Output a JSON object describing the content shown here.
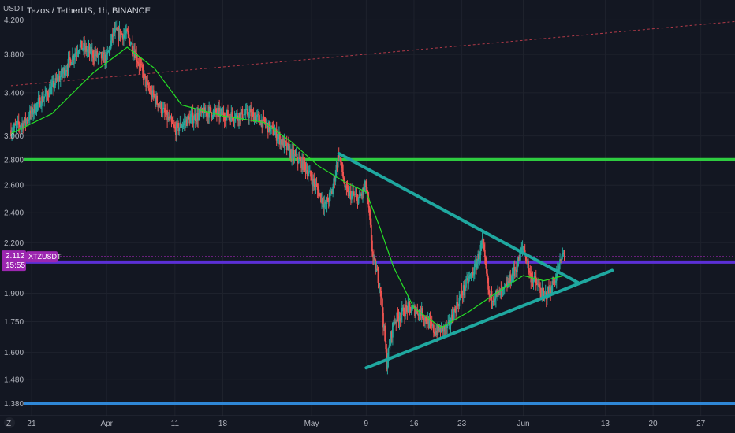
{
  "header": {
    "axis_currency": "USDT",
    "title": "Tezos / TetherUS, 1h, BINANCE"
  },
  "footer": {
    "timezone_icon_label": "Z"
  },
  "colors": {
    "background": "#131722",
    "candle_up": "#26a69a",
    "candle_down": "#ef5350",
    "ma_line": "#26e026",
    "triangle_lines": "#1fa8a0",
    "green_level": "#2ecc40",
    "blue_level": "#2f87d6",
    "purple_level": "#5b2fd6",
    "price_tag": "#9c27b0",
    "trend_dashed": "#b23a48"
  },
  "chart_data": {
    "type": "candlestick",
    "symbol": "XTZUSDT",
    "interval": "1h",
    "exchange": "BINANCE",
    "y_scale": "log",
    "ylim": [
      1.35,
      4.35
    ],
    "xlim": [
      "2022-03-18",
      "2022-07-02"
    ],
    "yticks": [
      1.38,
      1.48,
      1.6,
      1.75,
      1.9,
      2.2,
      2.4,
      2.6,
      2.8,
      3.0,
      3.4,
      3.8,
      4.2
    ],
    "ytick_labels": [
      "1.380",
      "1.480",
      "1.600",
      "1.750",
      "1.900",
      "2.200",
      "2.400",
      "2.600",
      "2.800",
      "3.000",
      "3.400",
      "3.800",
      "4.200"
    ],
    "xticks": [
      {
        "date": "2022-03-21",
        "label": "21"
      },
      {
        "date": "2022-04-01",
        "label": "Apr"
      },
      {
        "date": "2022-04-11",
        "label": "11"
      },
      {
        "date": "2022-04-18",
        "label": "18"
      },
      {
        "date": "2022-05-01",
        "label": "May"
      },
      {
        "date": "2022-05-09",
        "label": "9"
      },
      {
        "date": "2022-05-16",
        "label": "16"
      },
      {
        "date": "2022-05-23",
        "label": "23"
      },
      {
        "date": "2022-06-01",
        "label": "Jun"
      },
      {
        "date": "2022-06-13",
        "label": "13"
      },
      {
        "date": "2022-06-20",
        "label": "20"
      },
      {
        "date": "2022-06-27",
        "label": "27"
      }
    ],
    "price_path": [
      [
        "2022-03-18",
        3.05
      ],
      [
        "2022-03-20",
        3.12
      ],
      [
        "2022-03-22",
        3.3
      ],
      [
        "2022-03-24",
        3.45
      ],
      [
        "2022-03-26",
        3.65
      ],
      [
        "2022-03-28",
        3.9
      ],
      [
        "2022-03-30",
        3.8
      ],
      [
        "2022-04-01",
        3.75
      ],
      [
        "2022-04-02",
        4.05
      ],
      [
        "2022-04-04",
        4.02
      ],
      [
        "2022-04-05",
        3.85
      ],
      [
        "2022-04-07",
        3.45
      ],
      [
        "2022-04-09",
        3.25
      ],
      [
        "2022-04-11",
        3.05
      ],
      [
        "2022-04-13",
        3.15
      ],
      [
        "2022-04-16",
        3.22
      ],
      [
        "2022-04-19",
        3.18
      ],
      [
        "2022-04-22",
        3.2
      ],
      [
        "2022-04-24",
        3.12
      ],
      [
        "2022-04-26",
        3.0
      ],
      [
        "2022-04-28",
        2.85
      ],
      [
        "2022-04-30",
        2.75
      ],
      [
        "2022-05-02",
        2.55
      ],
      [
        "2022-05-03",
        2.45
      ],
      [
        "2022-05-04",
        2.55
      ],
      [
        "2022-05-05",
        2.85
      ],
      [
        "2022-05-06",
        2.55
      ],
      [
        "2022-05-08",
        2.5
      ],
      [
        "2022-05-09",
        2.6
      ],
      [
        "2022-05-10",
        2.1
      ],
      [
        "2022-05-11",
        1.95
      ],
      [
        "2022-05-12",
        1.55
      ],
      [
        "2022-05-13",
        1.75
      ],
      [
        "2022-05-15",
        1.82
      ],
      [
        "2022-05-17",
        1.8
      ],
      [
        "2022-05-19",
        1.7
      ],
      [
        "2022-05-21",
        1.72
      ],
      [
        "2022-05-23",
        1.9
      ],
      [
        "2022-05-25",
        2.05
      ],
      [
        "2022-05-26",
        2.2
      ],
      [
        "2022-05-27",
        1.88
      ],
      [
        "2022-05-29",
        1.9
      ],
      [
        "2022-05-31",
        2.05
      ],
      [
        "2022-06-01",
        2.18
      ],
      [
        "2022-06-02",
        2.0
      ],
      [
        "2022-06-03",
        1.95
      ],
      [
        "2022-06-04",
        1.88
      ],
      [
        "2022-06-05",
        1.92
      ],
      [
        "2022-06-06",
        2.02
      ],
      [
        "2022-06-07",
        2.15
      ]
    ],
    "moving_average": [
      [
        "2022-03-18",
        3.02
      ],
      [
        "2022-03-24",
        3.2
      ],
      [
        "2022-03-30",
        3.6
      ],
      [
        "2022-04-04",
        3.88
      ],
      [
        "2022-04-08",
        3.65
      ],
      [
        "2022-04-12",
        3.28
      ],
      [
        "2022-04-18",
        3.18
      ],
      [
        "2022-04-24",
        3.12
      ],
      [
        "2022-04-28",
        2.95
      ],
      [
        "2022-05-02",
        2.75
      ],
      [
        "2022-05-06",
        2.62
      ],
      [
        "2022-05-09",
        2.55
      ],
      [
        "2022-05-11",
        2.3
      ],
      [
        "2022-05-13",
        2.05
      ],
      [
        "2022-05-16",
        1.82
      ],
      [
        "2022-05-20",
        1.72
      ],
      [
        "2022-05-24",
        1.8
      ],
      [
        "2022-05-28",
        1.9
      ],
      [
        "2022-06-01",
        2.0
      ],
      [
        "2022-06-04",
        1.97
      ],
      [
        "2022-06-07",
        2.0
      ]
    ],
    "horizontal_levels": [
      {
        "name": "green-level",
        "price": 2.8
      },
      {
        "name": "purple-level",
        "price": 2.08
      },
      {
        "name": "blue-level",
        "price": 1.38
      }
    ],
    "current_price_line": 2.112,
    "trend_lines": [
      {
        "name": "dashed-upper-trendline",
        "from": [
          "2022-03-18",
          3.47
        ],
        "to": [
          "2022-07-02",
          4.18
        ]
      },
      {
        "name": "triangle-upper-line",
        "from": [
          "2022-05-05",
          2.85
        ],
        "to": [
          "2022-06-09",
          1.96
        ]
      },
      {
        "name": "triangle-lower-line",
        "from": [
          "2022-05-09",
          1.53
        ],
        "to": [
          "2022-06-14",
          2.03
        ]
      }
    ],
    "price_label": {
      "symbol": "XTZUSDT",
      "price": "2.112",
      "countdown": "15:55"
    }
  }
}
